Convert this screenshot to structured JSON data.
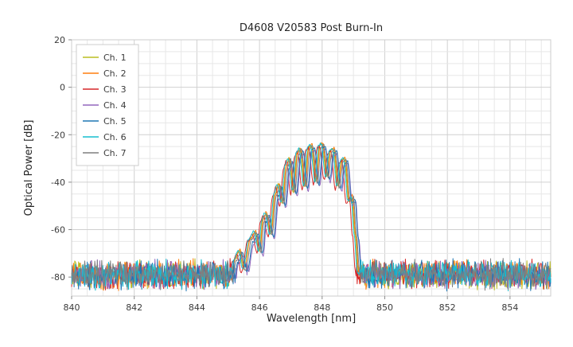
{
  "chart_data": {
    "type": "line",
    "title": "D4608 V20583 Post Burn-In",
    "xlabel": "Wavelength [nm]",
    "ylabel": "Optical Power [dB]",
    "xlim": [
      840,
      855.3
    ],
    "ylim": [
      -88,
      20
    ],
    "x_ticks": [
      840,
      842,
      844,
      846,
      848,
      850,
      852,
      854
    ],
    "y_ticks": [
      20,
      0,
      -20,
      -40,
      -60,
      -80
    ],
    "x_minor_step": 0.5,
    "y_minor_step": 5,
    "grid": true,
    "legend_position": "upper-left",
    "sample_step_nm": 0.02,
    "noise_floor_db": -80,
    "noise_band_db": [
      -86,
      -72
    ],
    "envelope_base": [
      [
        845.05,
        -88
      ],
      [
        845.2,
        -73
      ],
      [
        845.35,
        -69
      ],
      [
        845.5,
        -77
      ],
      [
        845.7,
        -64
      ],
      [
        845.85,
        -61
      ],
      [
        846.0,
        -69
      ],
      [
        846.1,
        -56
      ],
      [
        846.2,
        -53
      ],
      [
        846.35,
        -62
      ],
      [
        846.5,
        -45
      ],
      [
        846.6,
        -41
      ],
      [
        846.72,
        -49
      ],
      [
        846.85,
        -33
      ],
      [
        846.94,
        -30
      ],
      [
        847.08,
        -44
      ],
      [
        847.2,
        -28
      ],
      [
        847.29,
        -26
      ],
      [
        847.44,
        -42
      ],
      [
        847.56,
        -25.5
      ],
      [
        847.65,
        -24.5
      ],
      [
        847.8,
        -40
      ],
      [
        847.92,
        -24.5
      ],
      [
        848.0,
        -24
      ],
      [
        848.14,
        -38
      ],
      [
        848.27,
        -26.5
      ],
      [
        848.36,
        -26
      ],
      [
        848.5,
        -42
      ],
      [
        848.62,
        -31
      ],
      [
        848.71,
        -30
      ],
      [
        848.85,
        -48
      ],
      [
        848.95,
        -46
      ],
      [
        849.05,
        -62
      ],
      [
        849.15,
        -78
      ],
      [
        849.25,
        -88
      ]
    ],
    "series": [
      {
        "name": "Ch. 1",
        "color": "#bcbd22",
        "offset_nm": 0.0,
        "gain_db": 0.0,
        "seed": 101
      },
      {
        "name": "Ch. 2",
        "color": "#ff7f0e",
        "offset_nm": 0.02,
        "gain_db": 0.5,
        "seed": 202
      },
      {
        "name": "Ch. 3",
        "color": "#d62728",
        "offset_nm": -0.08,
        "gain_db": -1.0,
        "seed": 303
      },
      {
        "name": "Ch. 4",
        "color": "#9467bd",
        "offset_nm": 0.12,
        "gain_db": -2.0,
        "seed": 404
      },
      {
        "name": "Ch. 5",
        "color": "#1f77b4",
        "offset_nm": 0.1,
        "gain_db": -1.0,
        "seed": 505
      },
      {
        "name": "Ch. 6",
        "color": "#17becf",
        "offset_nm": -0.03,
        "gain_db": 0.2,
        "seed": 606
      },
      {
        "name": "Ch. 7",
        "color": "#7f7f7f",
        "offset_nm": 0.05,
        "gain_db": -0.3,
        "seed": 707
      }
    ]
  }
}
